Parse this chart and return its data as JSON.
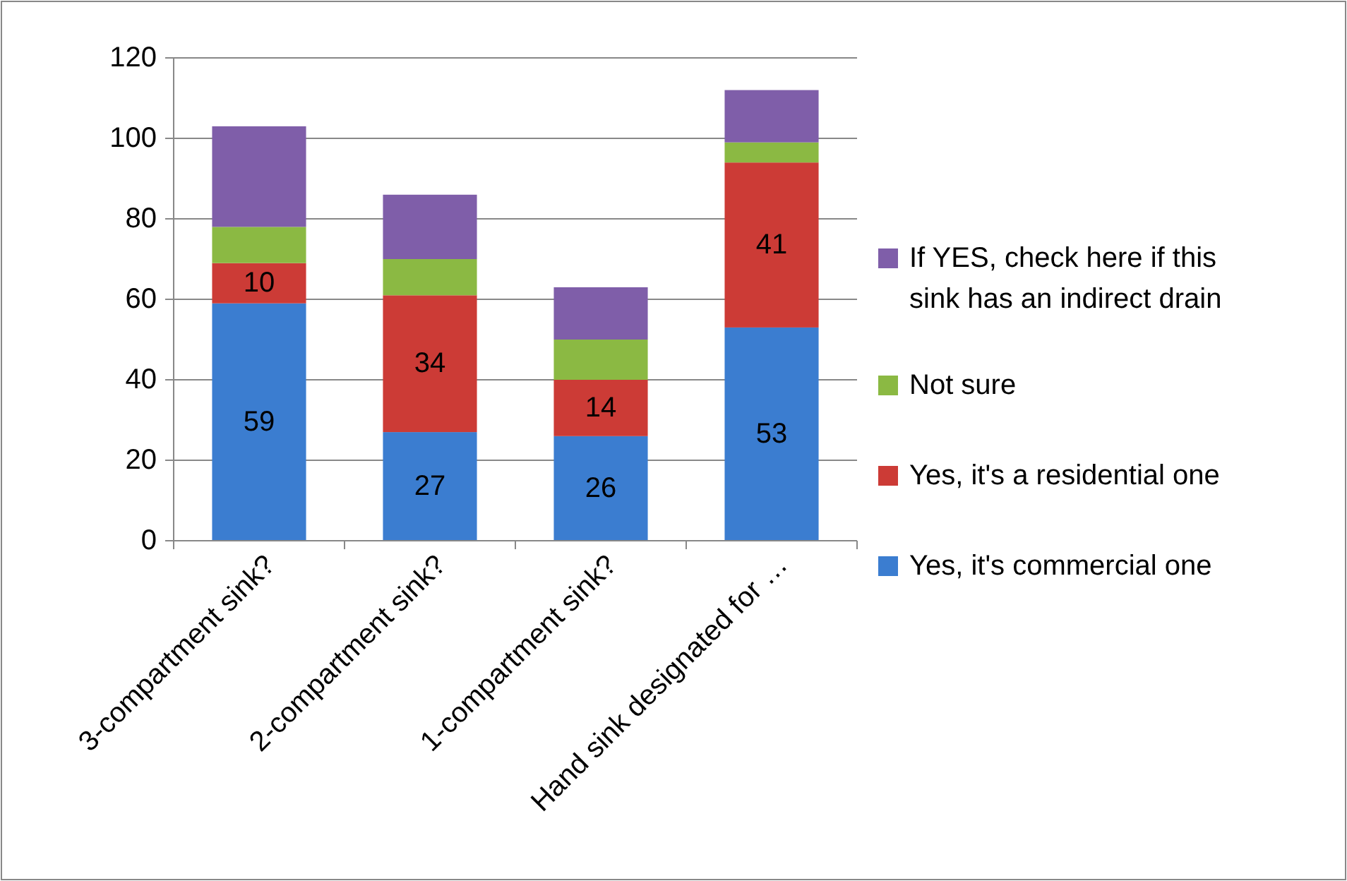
{
  "chart_data": {
    "type": "bar",
    "stacked": true,
    "categories": [
      "3-compartment sink?",
      "2-compartment sink?",
      "1-compartment sink?",
      "Hand sink designated for …"
    ],
    "series": [
      {
        "name": "Yes, it's commercial one",
        "color": "#3b7dd0",
        "values": [
          59,
          27,
          26,
          53
        ],
        "value_labels": [
          "59",
          "27",
          "26",
          "53"
        ]
      },
      {
        "name": "Yes, it's a residential one",
        "color": "#cc3b36",
        "values": [
          10,
          34,
          14,
          41
        ],
        "value_labels": [
          "10",
          "34",
          "14",
          "41"
        ]
      },
      {
        "name": "Not sure",
        "color": "#8bb943",
        "values": [
          9,
          9,
          10,
          5
        ]
      },
      {
        "name": "If YES, check here if this sink has an indirect drain",
        "color": "#7f5ea9",
        "values": [
          25,
          16,
          13,
          13
        ]
      }
    ],
    "ylim": [
      0,
      120
    ],
    "yticks": [
      0,
      20,
      40,
      60,
      80,
      100,
      120
    ],
    "grid": "y",
    "legend": "right"
  }
}
